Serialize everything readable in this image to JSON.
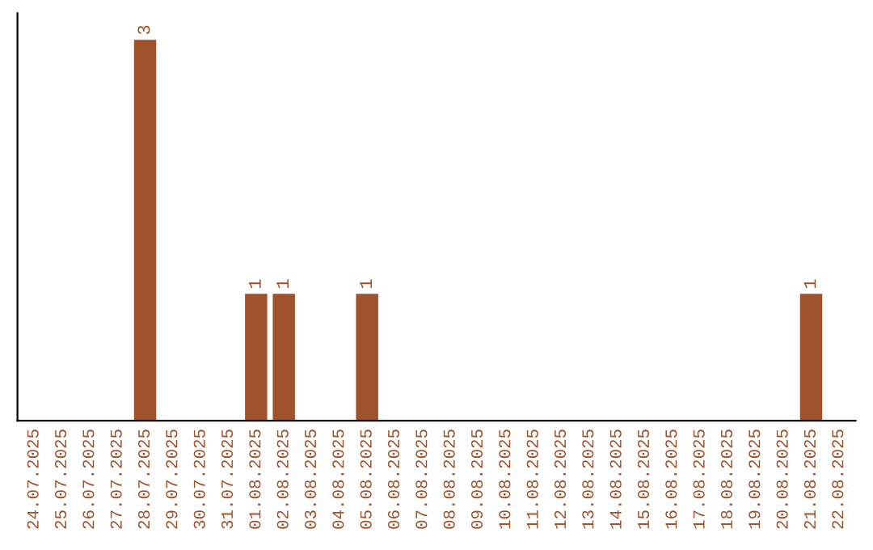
{
  "chart_data": {
    "type": "bar",
    "categories": [
      "24.07.2025",
      "25.07.2025",
      "26.07.2025",
      "27.07.2025",
      "28.07.2025",
      "29.07.2025",
      "30.07.2025",
      "31.07.2025",
      "01.08.2025",
      "02.08.2025",
      "03.08.2025",
      "04.08.2025",
      "05.08.2025",
      "06.08.2025",
      "07.08.2025",
      "08.08.2025",
      "09.08.2025",
      "10.08.2025",
      "11.08.2025",
      "12.08.2025",
      "13.08.2025",
      "14.08.2025",
      "15.08.2025",
      "16.08.2025",
      "17.08.2025",
      "18.08.2025",
      "19.08.2025",
      "20.08.2025",
      "21.08.2025",
      "22.08.2025"
    ],
    "values": [
      0,
      0,
      0,
      0,
      3,
      0,
      0,
      0,
      1,
      1,
      0,
      0,
      1,
      0,
      0,
      0,
      0,
      0,
      0,
      0,
      0,
      0,
      0,
      0,
      0,
      0,
      0,
      0,
      1,
      0
    ],
    "value_labels": [
      null,
      null,
      null,
      null,
      "3",
      null,
      null,
      null,
      "1",
      "1",
      null,
      null,
      "1",
      null,
      null,
      null,
      null,
      null,
      null,
      null,
      null,
      null,
      null,
      null,
      null,
      null,
      null,
      null,
      "1",
      null
    ],
    "color": "#a0522d",
    "tick_labels": "x",
    "grid": false,
    "legend": false
  }
}
